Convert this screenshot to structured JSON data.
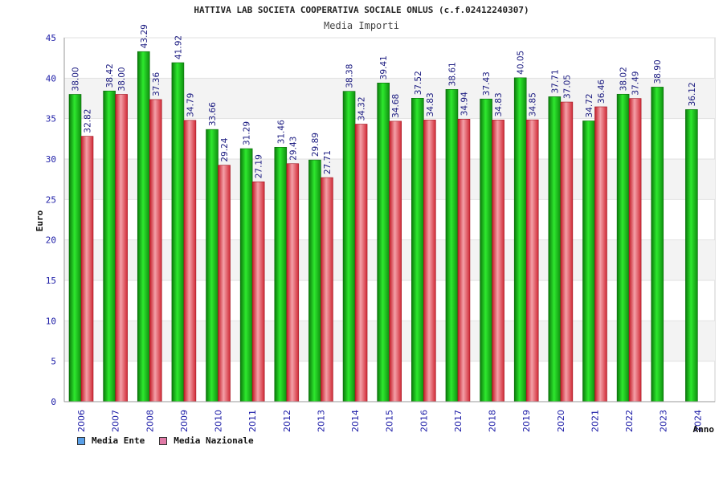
{
  "header": {
    "title": "HATTIVA LAB SOCIETA COOPERATIVA SOCIALE ONLUS (c.f.02412240307)",
    "subtitle": "Media Importi"
  },
  "legend": {
    "ente_label": "Media Ente",
    "nazionale_label": "Media Nazionale"
  },
  "colors": {
    "ente": "#1fbf1f",
    "nazionale": "#e84a55",
    "legend_ente": "#5aa0e8",
    "legend_nazionale": "#e07aa6",
    "axis_text": "#1a1aa6"
  },
  "chart_data": {
    "type": "bar",
    "title": "Media Importi",
    "xlabel": "Anno",
    "ylabel": "Euro",
    "ylim": [
      0,
      45
    ],
    "yticks": [
      0,
      5,
      10,
      15,
      20,
      25,
      30,
      35,
      40,
      45
    ],
    "categories": [
      "2006",
      "2007",
      "2008",
      "2009",
      "2010",
      "2011",
      "2012",
      "2013",
      "2014",
      "2015",
      "2016",
      "2017",
      "2018",
      "2019",
      "2020",
      "2021",
      "2022",
      "2023",
      "2024"
    ],
    "series": [
      {
        "name": "Media Ente",
        "values": [
          38.0,
          38.42,
          43.29,
          41.92,
          33.66,
          31.29,
          31.46,
          29.89,
          38.38,
          39.41,
          37.52,
          38.61,
          37.43,
          40.05,
          37.71,
          34.72,
          38.02,
          38.9,
          36.12
        ],
        "labels": [
          "38.00",
          "38.42",
          "43.29",
          "41.92",
          "33.66",
          "31.29",
          "31.46",
          "29.89",
          "38.38",
          "39.41",
          "37.52",
          "38.61",
          "37.43",
          "40.05",
          "37.71",
          "34.72",
          "38.02",
          "38.90",
          "36.12"
        ]
      },
      {
        "name": "Media Nazionale",
        "values": [
          32.82,
          38.0,
          37.36,
          34.79,
          29.24,
          27.19,
          29.43,
          27.71,
          34.32,
          34.68,
          34.83,
          34.94,
          34.83,
          34.85,
          37.05,
          36.46,
          37.49,
          null,
          null
        ],
        "labels": [
          "32.82",
          "38.00",
          "37.36",
          "34.79",
          "29.24",
          "27.19",
          "29.43",
          "27.71",
          "34.32",
          "34.68",
          "34.83",
          "34.94",
          "34.83",
          "34.85",
          "37.05",
          "36.46",
          "37.49",
          null,
          null
        ]
      }
    ]
  }
}
